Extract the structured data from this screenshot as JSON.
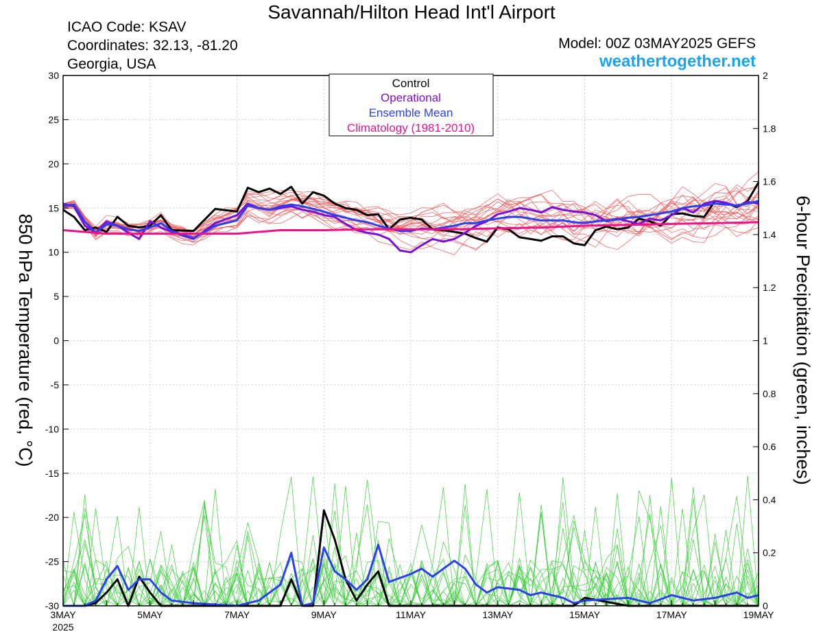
{
  "header": {
    "title": "Savannah/Hilton Head Int'l Airport",
    "icao": "ICAO Code: KSAV",
    "coordinates": "Coordinates: 32.13, -81.20",
    "region": "Georgia, USA",
    "model": "Model: 00Z 03MAY2025 GEFS",
    "website": "weathertogether.net"
  },
  "colors": {
    "control": "#000000",
    "operational": "#7a0fd6",
    "ensemble_mean": "#2a3ff0",
    "climatology": "#ee1188",
    "temp_members": "#f25050",
    "precip_members": "#33cc33"
  },
  "chart_data": {
    "type": "line",
    "left_axis": {
      "label": "850 hPa Temperature (red, °C)",
      "range": [
        -30,
        30
      ],
      "ticks": [
        "30",
        "25",
        "20",
        "15",
        "10",
        "5",
        "0",
        "-5",
        "-10",
        "-15",
        "-20",
        "-25",
        "-30"
      ]
    },
    "right_axis": {
      "label": "6-hour Precipitation (green, inches)",
      "range": [
        0,
        2
      ],
      "ticks": [
        "2",
        "1.8",
        "1.6",
        "1.4",
        "1.2",
        "1",
        "0.8",
        "0.6",
        "0.4",
        "0.2",
        "0"
      ]
    },
    "x_axis": {
      "range_days": [
        3,
        19
      ],
      "ticks": [
        {
          "day": 3,
          "label": "3MAY",
          "sub": "2025"
        },
        {
          "day": 5,
          "label": "5MAY",
          "sub": ""
        },
        {
          "day": 7,
          "label": "7MAY",
          "sub": ""
        },
        {
          "day": 9,
          "label": "9MAY",
          "sub": ""
        },
        {
          "day": 11,
          "label": "11MAY",
          "sub": ""
        },
        {
          "day": 13,
          "label": "13MAY",
          "sub": ""
        },
        {
          "day": 15,
          "label": "15MAY",
          "sub": ""
        },
        {
          "day": 17,
          "label": "17MAY",
          "sub": ""
        },
        {
          "day": 19,
          "label": "19MAY",
          "sub": ""
        }
      ]
    },
    "grid": true,
    "legend": {
      "placement": "top-center",
      "entries": [
        "Control",
        "Operational",
        "Ensemble Mean",
        "Climatology (1981-2010)"
      ]
    },
    "series": [
      {
        "name": "Control",
        "axis": "temp",
        "x": [
          3,
          3.25,
          3.5,
          3.75,
          4,
          4.25,
          4.5,
          4.75,
          5,
          5.25,
          5.5,
          6,
          6.5,
          7,
          7.25,
          7.5,
          7.75,
          8,
          8.25,
          8.5,
          8.75,
          9,
          9.25,
          9.5,
          9.75,
          10,
          10.25,
          10.5,
          10.75,
          11,
          11.25,
          11.5,
          11.75,
          12,
          12.25,
          12.5,
          12.75,
          13,
          13.25,
          13.5,
          13.75,
          14,
          14.25,
          14.5,
          14.75,
          15,
          15.25,
          15.5,
          15.75,
          16,
          16.25,
          16.5,
          16.75,
          17,
          17.25,
          17.5,
          17.75,
          18,
          18.25,
          18.5,
          18.75,
          19
        ],
        "y": [
          14.8,
          14,
          12.5,
          12.8,
          12.3,
          14,
          13,
          12.8,
          13,
          14.2,
          12.5,
          12.4,
          14.9,
          14.6,
          17.3,
          16.8,
          17.2,
          16.6,
          17.4,
          15.5,
          16.8,
          16.4,
          15.5,
          15,
          14.8,
          14.2,
          14.3,
          12.6,
          13.7,
          13.9,
          13.7,
          12.6,
          12.5,
          12.3,
          12.1,
          11.6,
          11.2,
          12.8,
          12.6,
          11.7,
          11.5,
          11.3,
          11.8,
          11.8,
          11,
          10.8,
          12.5,
          12.9,
          12.6,
          12.8,
          13.8,
          13.5,
          13,
          14.3,
          14.4,
          14.1,
          14,
          15.8,
          15.6,
          15.1,
          15.8,
          17.9
        ]
      },
      {
        "name": "Operational",
        "axis": "temp",
        "x": [
          3,
          3.25,
          3.5,
          3.75,
          4,
          4.25,
          4.5,
          4.75,
          5,
          5.25,
          5.5,
          6,
          6.5,
          7,
          7.25,
          7.5,
          7.75,
          8,
          8.25,
          8.5,
          8.75,
          9,
          9.25,
          9.5,
          9.75,
          10,
          10.25,
          10.5,
          10.75,
          11,
          11.25,
          11.5,
          11.75,
          12,
          12.25,
          12.5,
          12.75,
          13,
          13.25,
          13.5,
          13.75,
          14,
          14.25,
          14.5,
          14.75,
          15,
          15.25,
          15.5,
          15.75,
          16,
          16.25,
          16.5,
          16.75,
          17,
          17.25,
          17.5,
          17.75,
          18,
          18.25,
          18.5,
          18.75,
          19
        ],
        "y": [
          15.5,
          15.2,
          13,
          12.2,
          13.5,
          13,
          12.2,
          11.5,
          13.5,
          12.8,
          12.3,
          11.5,
          13.3,
          14.2,
          15.5,
          15,
          14.8,
          15,
          15.2,
          14.8,
          14.6,
          14.2,
          14,
          13.2,
          12.5,
          12.2,
          12,
          11.5,
          10.2,
          10,
          10.8,
          11.5,
          11.2,
          11.5,
          12.2,
          13,
          13.5,
          14.3,
          14.6,
          15,
          14.8,
          14.5,
          15.1,
          14.8,
          14.6,
          14.5,
          14.2,
          13.5,
          13.8,
          13.5,
          13.2,
          13.8,
          13.6,
          14.2,
          15,
          14.5,
          15.5,
          15.8,
          15.6,
          15.2,
          15.7,
          15.5
        ]
      },
      {
        "name": "Ensemble Mean",
        "axis": "temp",
        "x": [
          3,
          3.25,
          3.5,
          3.75,
          4,
          4.25,
          4.5,
          4.75,
          5,
          5.25,
          5.5,
          6,
          6.5,
          7,
          7.25,
          7.5,
          7.75,
          8,
          8.25,
          8.5,
          8.75,
          9,
          9.25,
          9.5,
          9.75,
          10,
          10.25,
          10.5,
          10.75,
          11,
          11.25,
          11.5,
          11.75,
          12,
          12.25,
          12.5,
          12.75,
          13,
          13.25,
          13.5,
          13.75,
          14,
          14.25,
          14.5,
          14.75,
          15,
          15.25,
          15.5,
          15.75,
          16,
          16.25,
          16.5,
          16.75,
          17,
          17.25,
          17.5,
          17.75,
          18,
          18.25,
          18.5,
          18.75,
          19
        ],
        "y": [
          15.2,
          15.4,
          13.5,
          12.2,
          13.2,
          13,
          12.6,
          12.4,
          12.8,
          13.3,
          12.4,
          11.6,
          13,
          13.6,
          15.3,
          15,
          14.8,
          15.2,
          15.4,
          15.2,
          14.9,
          14.6,
          14.2,
          13.9,
          13.6,
          13.4,
          13,
          12.7,
          12.4,
          12.4,
          12.7,
          12.6,
          12.8,
          13,
          13.3,
          13.3,
          13.6,
          13.8,
          14,
          14,
          13.8,
          13.6,
          13.6,
          13.6,
          13.4,
          13.3,
          13.5,
          13.6,
          13.7,
          13.9,
          14,
          14.2,
          14.4,
          14.6,
          15,
          15.2,
          15.3,
          15.5,
          15.4,
          15.3,
          15.5,
          15.8
        ]
      },
      {
        "name": "Climatology (1981-2010)",
        "axis": "temp",
        "x": [
          3,
          4,
          5,
          6,
          7,
          8,
          9,
          10,
          11,
          12,
          13,
          14,
          15,
          16,
          17,
          18,
          19
        ],
        "y": [
          12.5,
          12.1,
          12.1,
          12.1,
          12.1,
          12.5,
          12.5,
          12.6,
          12.6,
          12.6,
          12.7,
          12.8,
          13,
          13.1,
          13.2,
          13.3,
          13.4
        ]
      },
      {
        "name": "Control",
        "axis": "precip",
        "x": [
          3,
          3.5,
          3.75,
          4,
          4.25,
          4.5,
          4.75,
          5,
          5.25,
          5.5,
          6,
          7,
          8,
          8.25,
          8.5,
          8.75,
          9,
          9.25,
          9.5,
          9.75,
          10,
          10.25,
          10.5,
          11,
          12,
          13,
          14,
          14.75,
          15,
          16,
          17,
          18,
          19
        ],
        "y": [
          0,
          0,
          0.01,
          0.05,
          0.1,
          0,
          0.11,
          0.05,
          0,
          0,
          0,
          0,
          0,
          0.1,
          0,
          0,
          0.36,
          0.25,
          0.1,
          0.02,
          0.08,
          0.13,
          0,
          0,
          0,
          0,
          0,
          0,
          0.03,
          0,
          0,
          0,
          0
        ]
      },
      {
        "name": "Ensemble Mean",
        "axis": "precip",
        "x": [
          3,
          3.5,
          3.75,
          4,
          4.25,
          4.5,
          4.75,
          5,
          5.25,
          5.5,
          6,
          7,
          7.5,
          8,
          8.25,
          8.5,
          8.75,
          9,
          9.25,
          9.5,
          9.75,
          10,
          10.25,
          10.5,
          11,
          11.25,
          11.5,
          12,
          12.25,
          12.5,
          12.75,
          13,
          13.5,
          13.75,
          14,
          14.5,
          14.75,
          15,
          16,
          16.5,
          17,
          17.5,
          18,
          18.25,
          18.5,
          18.75,
          19
        ],
        "y": [
          0,
          0,
          0.02,
          0.1,
          0.15,
          0.06,
          0.1,
          0.1,
          0.05,
          0.02,
          0.01,
          0,
          0.02,
          0.08,
          0.2,
          0,
          0.01,
          0.22,
          0.13,
          0.1,
          0.06,
          0.1,
          0.23,
          0.09,
          0.12,
          0.14,
          0.11,
          0.17,
          0.14,
          0.08,
          0.05,
          0.07,
          0.06,
          0.04,
          0.05,
          0.03,
          0.01,
          0.02,
          0.03,
          0.01,
          0.04,
          0.02,
          0.03,
          0.04,
          0.05,
          0.03,
          0.04
        ]
      }
    ]
  }
}
